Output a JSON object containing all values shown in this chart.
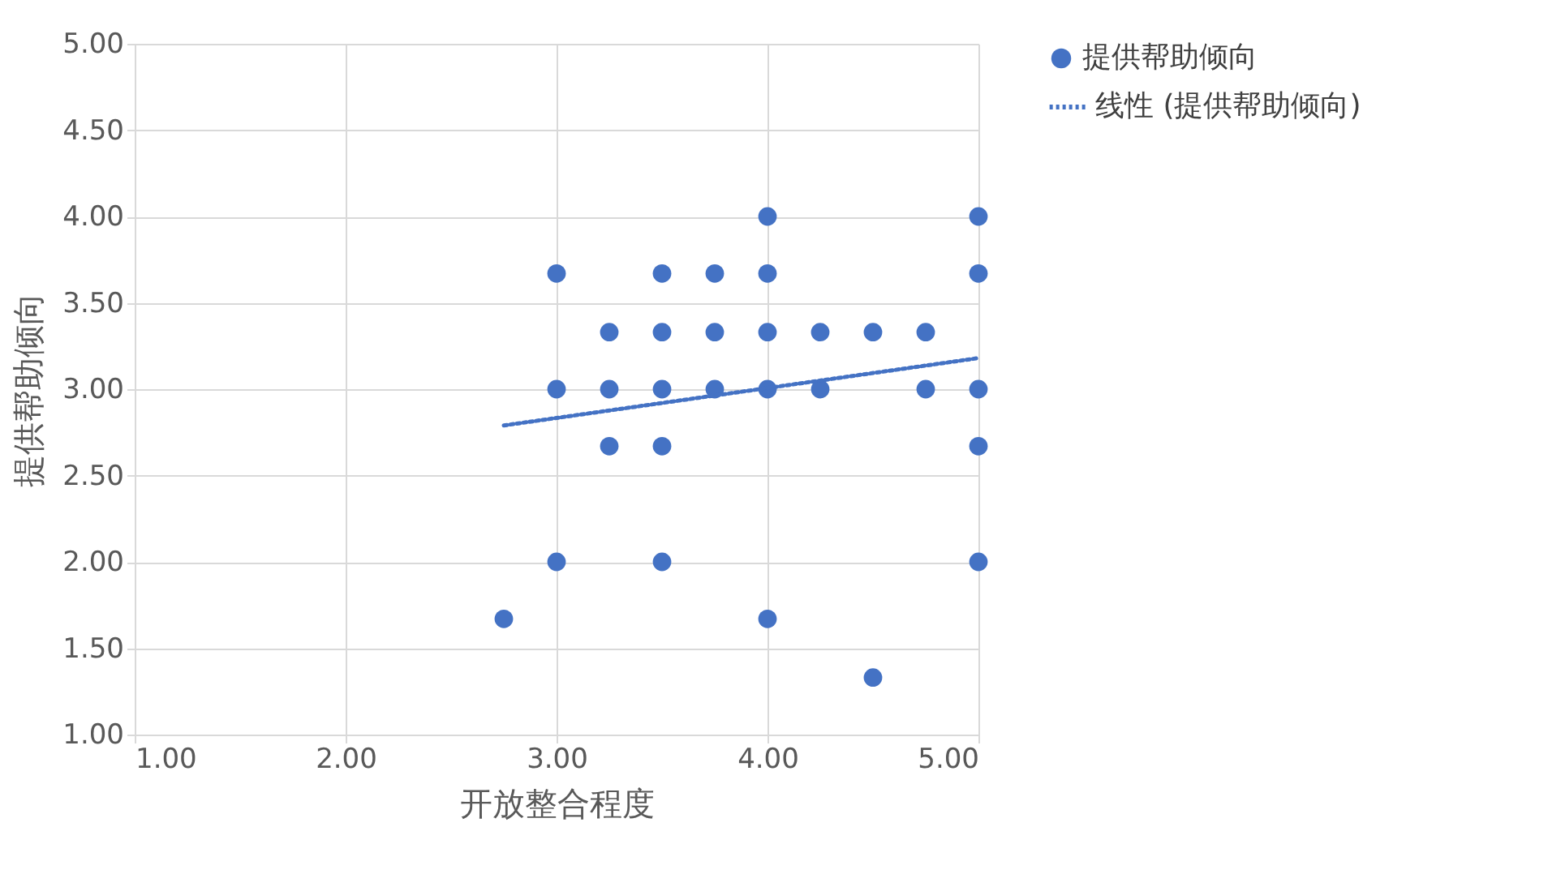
{
  "chart_data": {
    "type": "scatter",
    "xlabel": "开放整合程度",
    "ylabel": "提供帮助倾向",
    "xlim": [
      1,
      5
    ],
    "ylim": [
      1,
      5
    ],
    "xticks": [
      {
        "value": 1,
        "label": "1.00"
      },
      {
        "value": 2,
        "label": "2.00"
      },
      {
        "value": 3,
        "label": "3.00"
      },
      {
        "value": 4,
        "label": "4.00"
      },
      {
        "value": 5,
        "label": "5.00"
      }
    ],
    "yticks": [
      {
        "value": 1,
        "label": "1.00"
      },
      {
        "value": 1.5,
        "label": "1.50"
      },
      {
        "value": 2,
        "label": "2.00"
      },
      {
        "value": 2.5,
        "label": "2.50"
      },
      {
        "value": 3,
        "label": "3.00"
      },
      {
        "value": 3.5,
        "label": "3.50"
      },
      {
        "value": 4,
        "label": "4.00"
      },
      {
        "value": 4.5,
        "label": "4.50"
      },
      {
        "value": 5,
        "label": "5.00"
      }
    ],
    "grid": true,
    "legend": "right",
    "marker": "circle",
    "series": [
      {
        "name": "提供帮助倾向",
        "color": "#4472c4",
        "x": [
          2.75,
          3,
          3,
          3,
          3.25,
          3.25,
          3.25,
          3.5,
          3.5,
          3.5,
          3.5,
          3.5,
          3.75,
          3.75,
          3.75,
          4,
          4,
          4,
          4,
          4,
          4.25,
          4.25,
          4.5,
          4.5,
          4.75,
          4.75,
          5,
          5,
          5,
          5,
          5
        ],
        "values": [
          1.67,
          3.67,
          3.0,
          2.0,
          3.33,
          3.0,
          2.67,
          3.67,
          3.33,
          3.0,
          2.67,
          2.0,
          3.67,
          3.33,
          3.0,
          4.0,
          3.67,
          3.33,
          3.0,
          1.67,
          3.33,
          3.0,
          3.33,
          1.33,
          3.33,
          3.0,
          4.0,
          3.67,
          3.0,
          2.67,
          2.0
        ]
      },
      {
        "name": "线性 (提供帮助倾向)",
        "type": "line",
        "color": "#4472c4",
        "line_style": "dotted",
        "marker": "none",
        "x": [
          2.75,
          5
        ],
        "values": [
          2.79,
          3.18
        ]
      }
    ]
  }
}
